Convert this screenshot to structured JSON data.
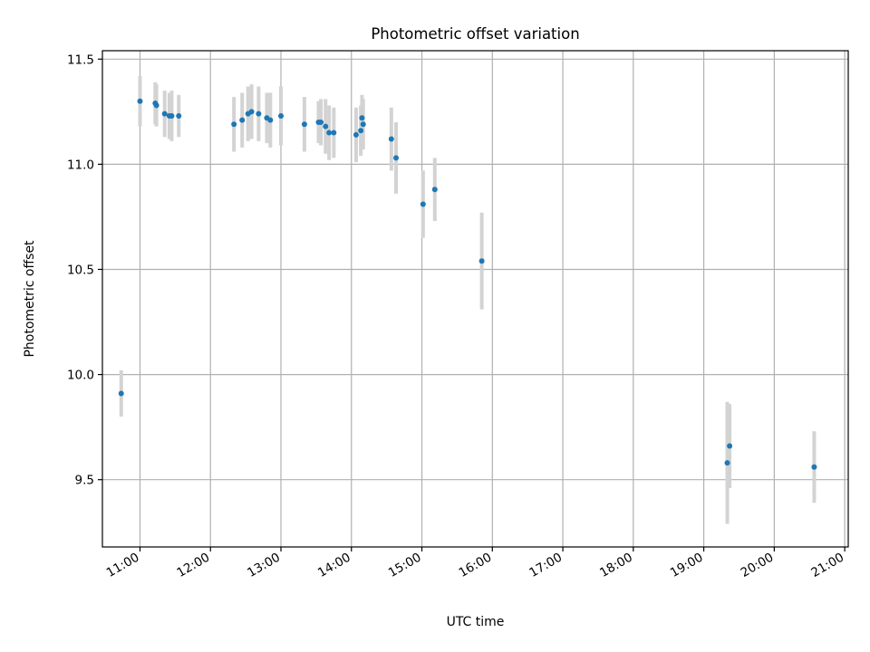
{
  "chart_data": {
    "type": "scatter",
    "title": "Photometric offset variation",
    "xlabel": "UTC time",
    "ylabel": "Photometric offset",
    "xlim": [
      "10:28",
      "21:03"
    ],
    "ylim": [
      9.18,
      11.54
    ],
    "x_ticks": [
      "11:00",
      "12:00",
      "13:00",
      "14:00",
      "15:00",
      "16:00",
      "17:00",
      "18:00",
      "19:00",
      "20:00",
      "21:00"
    ],
    "y_ticks": [
      "9.5",
      "10.0",
      "10.5",
      "11.0",
      "11.5"
    ],
    "grid": true,
    "colors": {
      "point": "#1f77b4",
      "errorbar": "#d3d3d3"
    },
    "points": [
      {
        "x": "10:44",
        "y": 9.91,
        "err": 0.11
      },
      {
        "x": "11:00",
        "y": 11.3,
        "err": 0.12
      },
      {
        "x": "11:13",
        "y": 11.29,
        "err": 0.1
      },
      {
        "x": "11:14",
        "y": 11.28,
        "err": 0.1
      },
      {
        "x": "11:21",
        "y": 11.24,
        "err": 0.11
      },
      {
        "x": "11:25",
        "y": 11.23,
        "err": 0.11
      },
      {
        "x": "11:27",
        "y": 11.23,
        "err": 0.12
      },
      {
        "x": "11:33",
        "y": 11.23,
        "err": 0.1
      },
      {
        "x": "12:20",
        "y": 11.19,
        "err": 0.13
      },
      {
        "x": "12:27",
        "y": 11.21,
        "err": 0.13
      },
      {
        "x": "12:32",
        "y": 11.24,
        "err": 0.13
      },
      {
        "x": "12:35",
        "y": 11.25,
        "err": 0.13
      },
      {
        "x": "12:41",
        "y": 11.24,
        "err": 0.13
      },
      {
        "x": "12:48",
        "y": 11.22,
        "err": 0.12
      },
      {
        "x": "12:51",
        "y": 11.21,
        "err": 0.13
      },
      {
        "x": "13:00",
        "y": 11.23,
        "err": 0.14
      },
      {
        "x": "13:20",
        "y": 11.19,
        "err": 0.13
      },
      {
        "x": "13:32",
        "y": 11.2,
        "err": 0.1
      },
      {
        "x": "13:34",
        "y": 11.2,
        "err": 0.11
      },
      {
        "x": "13:38",
        "y": 11.18,
        "err": 0.13
      },
      {
        "x": "13:41",
        "y": 11.15,
        "err": 0.13
      },
      {
        "x": "13:45",
        "y": 11.15,
        "err": 0.12
      },
      {
        "x": "14:04",
        "y": 11.14,
        "err": 0.13
      },
      {
        "x": "14:08",
        "y": 11.16,
        "err": 0.12
      },
      {
        "x": "14:09",
        "y": 11.22,
        "err": 0.11
      },
      {
        "x": "14:10",
        "y": 11.19,
        "err": 0.12
      },
      {
        "x": "14:34",
        "y": 11.12,
        "err": 0.15
      },
      {
        "x": "14:38",
        "y": 11.03,
        "err": 0.17
      },
      {
        "x": "15:01",
        "y": 10.81,
        "err": 0.16
      },
      {
        "x": "15:11",
        "y": 10.88,
        "err": 0.15
      },
      {
        "x": "15:51",
        "y": 10.54,
        "err": 0.23
      },
      {
        "x": "19:20",
        "y": 9.58,
        "err": 0.29
      },
      {
        "x": "19:22",
        "y": 9.66,
        "err": 0.2
      },
      {
        "x": "20:34",
        "y": 9.56,
        "err": 0.17
      }
    ]
  }
}
